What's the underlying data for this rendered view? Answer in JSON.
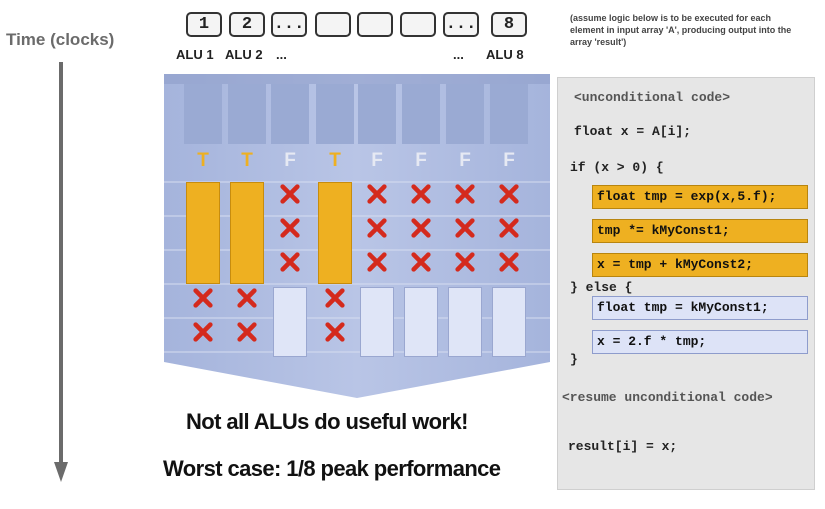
{
  "time_label": "Time (clocks)",
  "alus": [
    {
      "box": "1",
      "label": "ALU 1"
    },
    {
      "box": "2",
      "label": "ALU 2"
    },
    {
      "box": "...",
      "label": "..."
    },
    {
      "box": "",
      "label": ""
    },
    {
      "box": "",
      "label": ""
    },
    {
      "box": "",
      "label": ""
    },
    {
      "box": "...",
      "label": "..."
    },
    {
      "box": "8",
      "label": "ALU 8"
    }
  ],
  "alu_end_label": "ALU 8",
  "lanes": [
    "T",
    "T",
    "F",
    "T",
    "F",
    "F",
    "F",
    "F"
  ],
  "note": "(assume logic below is to be executed for each element in input array 'A', producing output into the array 'result')",
  "code": {
    "unconditional": "<unconditional code>",
    "line1": "float x = A[i];",
    "if_line": "if (x > 0) {",
    "then": [
      "float tmp = exp(x,5.f);",
      "tmp *= kMyConst1;",
      "x = tmp + kMyConst2;"
    ],
    "else_line": "} else {",
    "else_block": [
      "float tmp = kMyConst1;",
      "x = 2.f * tmp;"
    ],
    "close": "}",
    "resume": "<resume unconditional code>",
    "result": "result[i] = x;"
  },
  "message1": "Not all ALUs do useful work!",
  "message2": "Worst case: 1/8 peak performance",
  "colors": {
    "true_lane": "#eeb021",
    "false_lane": "#dfe5f7",
    "x_mark": "#d42a1d",
    "panel": "#a3b3db"
  }
}
